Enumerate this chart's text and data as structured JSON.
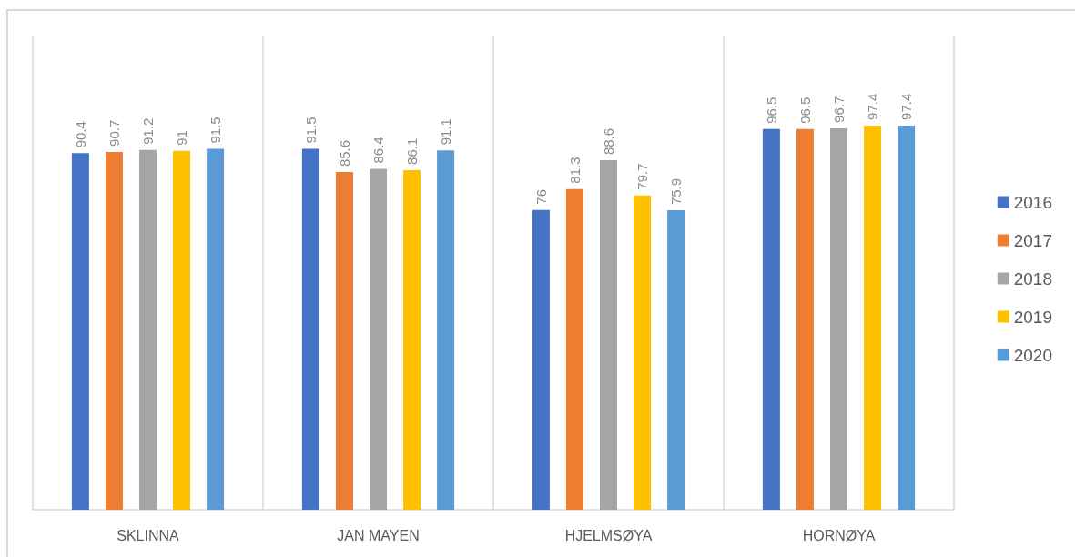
{
  "chart_data": {
    "type": "bar",
    "categories": [
      "SKLINNA",
      "JAN MAYEN",
      "HJELMSØYA",
      "HORNØYA"
    ],
    "series": [
      {
        "name": "2016",
        "color": "#4472c4",
        "values": [
          90.4,
          91.5,
          76,
          96.5
        ]
      },
      {
        "name": "2017",
        "color": "#ed7d31",
        "values": [
          90.7,
          85.6,
          81.3,
          96.5
        ]
      },
      {
        "name": "2018",
        "color": "#a5a5a5",
        "values": [
          91.2,
          86.4,
          88.6,
          96.7
        ]
      },
      {
        "name": "2019",
        "color": "#ffc000",
        "values": [
          91,
          86.1,
          79.7,
          97.4
        ]
      },
      {
        "name": "2020",
        "color": "#5b9bd5",
        "values": [
          91.5,
          91.1,
          75.9,
          97.4
        ]
      }
    ],
    "ylim": [
      0,
      120
    ],
    "tick_labels": "x",
    "grid": "x",
    "legend": "right",
    "data_labels": true
  }
}
